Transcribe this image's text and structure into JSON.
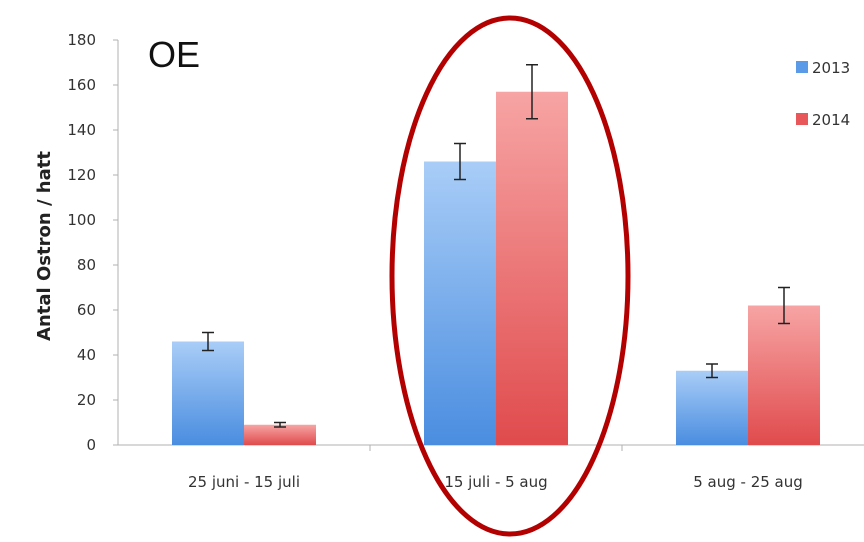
{
  "chart_data": {
    "type": "bar",
    "title": "OE",
    "xlabel": "",
    "ylabel": "Antal Ostron / hatt",
    "ylim": [
      0,
      180
    ],
    "yticks": [
      0,
      20,
      40,
      60,
      80,
      100,
      120,
      140,
      160,
      180
    ],
    "categories": [
      "25 juni - 15 juli",
      "15 juli - 5 aug",
      "5 aug - 25 aug"
    ],
    "series": [
      {
        "name": "2013",
        "color": "#5b9ae6",
        "values": [
          46,
          126,
          33
        ],
        "errors": [
          4,
          8,
          3
        ]
      },
      {
        "name": "2014",
        "color": "#e8585a",
        "values": [
          9,
          157,
          62
        ],
        "errors": [
          1,
          12,
          8
        ]
      }
    ],
    "legend": "top-right",
    "grid": false,
    "annotation": {
      "shape": "ellipse",
      "color": "#b00000",
      "highlights_category": "15 juli - 5 aug"
    }
  }
}
